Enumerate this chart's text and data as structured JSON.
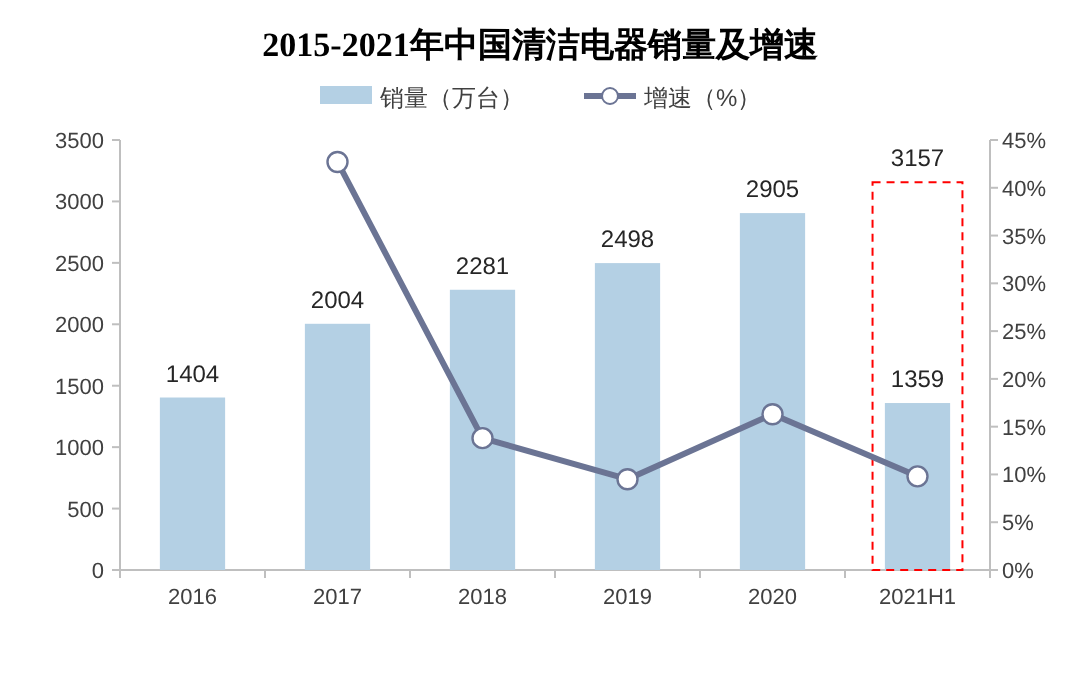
{
  "chart_data": {
    "type": "bar",
    "title": "2015-2021年中国清洁电器销量及增速",
    "categories": [
      "2016",
      "2017",
      "2018",
      "2019",
      "2020",
      "2021H1"
    ],
    "series": [
      {
        "name": "销量（万台）",
        "color": "#b4d0e4",
        "values": [
          1404,
          2004,
          2281,
          2498,
          2905,
          1359
        ],
        "value_labels": [
          "1404",
          "2004",
          "2281",
          "2498",
          "2905",
          "1359"
        ]
      },
      {
        "color": "#ff0000",
        "line_style": "dashed",
        "values": [
          null,
          null,
          null,
          null,
          null,
          3157
        ],
        "value_labels": [
          null,
          null,
          null,
          null,
          null,
          "3157"
        ]
      },
      {
        "name": "增速（%）",
        "type": "line",
        "axis": "y2",
        "color": "#6b7494",
        "marker": "circle",
        "values": [
          null,
          42.7,
          13.8,
          9.5,
          16.3,
          9.8
        ]
      }
    ],
    "ylim": [
      0,
      3500
    ],
    "yticks": [
      0,
      500,
      1000,
      1500,
      2000,
      2500,
      3000,
      3500
    ],
    "y2lim": [
      0,
      45
    ],
    "y2ticks": [
      {
        "value": 0,
        "label": "0%"
      },
      {
        "value": 5,
        "label": "5%"
      },
      {
        "value": 10,
        "label": "10%"
      },
      {
        "value": 15,
        "label": "15%"
      },
      {
        "value": 20,
        "label": "20%"
      },
      {
        "value": 25,
        "label": "25%"
      },
      {
        "value": 30,
        "label": "30%"
      },
      {
        "value": 35,
        "label": "35%"
      },
      {
        "value": 40,
        "label": "40%"
      },
      {
        "value": 45,
        "label": "45%"
      }
    ],
    "legend": "top"
  }
}
